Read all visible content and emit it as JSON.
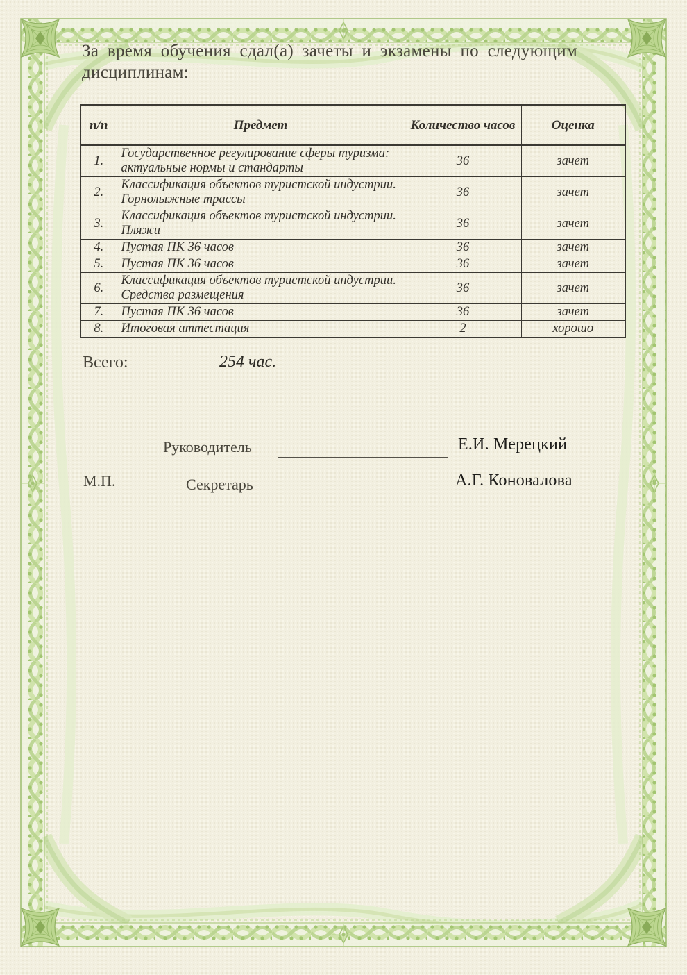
{
  "heading": "За время обучения сдал(а) зачеты и экзамены по следующим дисциплинам:",
  "table": {
    "headers": {
      "num": "п/п",
      "subject": "Предмет",
      "hours": "Количество часов",
      "grade": "Оценка"
    },
    "rows": [
      {
        "num": "1.",
        "subject": "Государственное регулирование сферы туризма: актуальные нормы и стандарты",
        "hours": "36",
        "grade": "зачет"
      },
      {
        "num": "2.",
        "subject": "Классификация объектов туристской индустрии. Горнолыжные трассы",
        "hours": "36",
        "grade": "зачет"
      },
      {
        "num": "3.",
        "subject": "Классификация объектов туристской индустрии. Пляжи",
        "hours": "36",
        "grade": "зачет"
      },
      {
        "num": "4.",
        "subject": "Пустая ПК 36 часов",
        "hours": "36",
        "grade": "зачет"
      },
      {
        "num": "5.",
        "subject": "Пустая ПК 36 часов",
        "hours": "36",
        "grade": "зачет"
      },
      {
        "num": "6.",
        "subject": "Классификация объектов туристской индустрии. Средства размещения",
        "hours": "36",
        "grade": "зачет"
      },
      {
        "num": "7.",
        "subject": "Пустая ПК 36 часов",
        "hours": "36",
        "grade": "зачет"
      },
      {
        "num": "8.",
        "subject": "Итоговая аттестация",
        "hours": "2",
        "grade": "хорошо"
      }
    ]
  },
  "total": {
    "label": "Всего:",
    "value": "254 час."
  },
  "signatures": {
    "stamp": "М.П.",
    "head_label": "Руководитель",
    "head_name": "Е.И. Мерецкий",
    "secretary_label": "Секретарь",
    "secretary_name": "А.Г. Коновалова"
  },
  "colors": {
    "paper": "#f2efe0",
    "border_green": "#9cbc6e",
    "garland_green": "#a2c571",
    "rosette_green": "#bcd690",
    "table_border": "#3b3933",
    "text": "#3b382f"
  }
}
